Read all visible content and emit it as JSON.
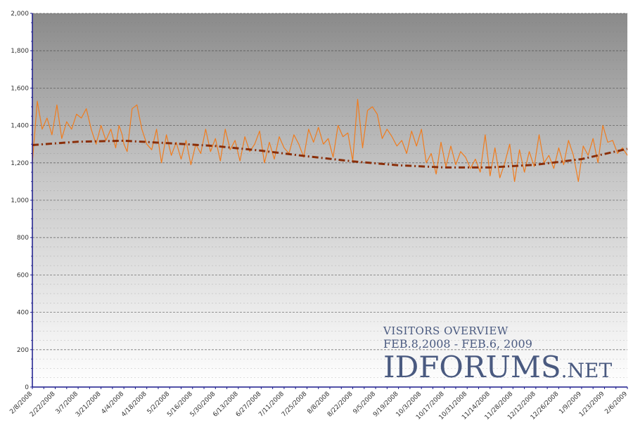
{
  "chart_data": {
    "type": "line",
    "title": "VISITORS OVERVIEW",
    "subtitle": "FEB.8,2008 - FEB.6, 2009",
    "xlabel": "",
    "ylabel": "",
    "ylim": [
      0,
      2000
    ],
    "y_ticks": [
      "0",
      "200",
      "400",
      "600",
      "800",
      "1,000",
      "1,200",
      "1,400",
      "1,600",
      "1,800",
      "2,000"
    ],
    "x_ticks": [
      "2/8/2008",
      "2/22/2008",
      "3/7/2008",
      "3/21/2008",
      "4/4/2008",
      "4/18/2008",
      "5/2/2008",
      "5/16/2008",
      "5/30/2008",
      "6/13/2008",
      "6/27/2008",
      "7/11/2008",
      "7/25/2008",
      "8/8/2008",
      "8/22/2008",
      "9/5/2008",
      "9/19/2008",
      "10/3/2008",
      "10/17/2008",
      "10/31/2008",
      "11/14/2008",
      "11/28/2008",
      "12/12/2008",
      "12/26/2008",
      "1/9/2009",
      "1/23/2009",
      "2/6/2009"
    ],
    "grid": true,
    "series": [
      {
        "style": "solid",
        "color": "#f07c1e",
        "x": [
          "2/8/2008",
          "2/11/2008",
          "2/14/2008",
          "2/17/2008",
          "2/20/2008",
          "2/23/2008",
          "2/26/2008",
          "2/29/2008",
          "3/3/2008",
          "3/6/2008",
          "3/9/2008",
          "3/12/2008",
          "3/15/2008",
          "3/18/2008",
          "3/21/2008",
          "3/24/2008",
          "3/27/2008",
          "3/30/2008",
          "4/1/2008",
          "4/3/2008",
          "4/4/2008",
          "4/6/2008",
          "4/9/2008",
          "4/12/2008",
          "4/15/2008",
          "4/18/2008",
          "4/21/2008",
          "4/24/2008",
          "4/27/2008",
          "4/30/2008",
          "5/3/2008",
          "5/6/2008",
          "5/9/2008",
          "5/12/2008",
          "5/15/2008",
          "5/18/2008",
          "5/21/2008",
          "5/24/2008",
          "5/27/2008",
          "5/30/2008",
          "6/2/2008",
          "6/5/2008",
          "6/8/2008",
          "6/11/2008",
          "6/14/2008",
          "6/17/2008",
          "6/20/2008",
          "6/23/2008",
          "6/26/2008",
          "6/29/2008",
          "7/2/2008",
          "7/5/2008",
          "7/8/2008",
          "7/11/2008",
          "7/14/2008",
          "7/17/2008",
          "7/20/2008",
          "7/23/2008",
          "7/26/2008",
          "7/29/2008",
          "8/1/2008",
          "8/4/2008",
          "8/7/2008",
          "8/10/2008",
          "8/13/2008",
          "8/16/2008",
          "8/19/2008",
          "8/22/2008",
          "8/25/2008",
          "8/28/2008",
          "8/31/2008",
          "9/3/2008",
          "9/6/2008",
          "9/9/2008",
          "9/12/2008",
          "9/15/2008",
          "9/18/2008",
          "9/21/2008",
          "9/24/2008",
          "9/27/2008",
          "9/30/2008",
          "10/3/2008",
          "10/6/2008",
          "10/9/2008",
          "10/12/2008",
          "10/15/2008",
          "10/18/2008",
          "10/21/2008",
          "10/24/2008",
          "10/27/2008",
          "10/30/2008",
          "11/2/2008",
          "11/5/2008",
          "11/8/2008",
          "11/11/2008",
          "11/14/2008",
          "11/17/2008",
          "11/20/2008",
          "11/23/2008",
          "11/26/2008",
          "11/29/2008",
          "12/2/2008",
          "12/5/2008",
          "12/8/2008",
          "12/11/2008",
          "12/14/2008",
          "12/17/2008",
          "12/20/2008",
          "12/23/2008",
          "12/26/2008",
          "12/29/2008",
          "1/1/2009",
          "1/4/2009",
          "1/7/2009",
          "1/10/2009",
          "1/13/2009",
          "1/16/2009",
          "1/19/2009",
          "1/22/2009",
          "1/25/2009",
          "1/28/2009",
          "1/31/2009",
          "2/3/2009",
          "2/6/2009"
        ],
        "values": [
          1200,
          1530,
          1380,
          1440,
          1350,
          1510,
          1330,
          1420,
          1380,
          1460,
          1440,
          1490,
          1380,
          1300,
          1400,
          1320,
          1380,
          1280,
          1400,
          1350,
          1300,
          1260,
          1490,
          1510,
          1380,
          1300,
          1270,
          1380,
          1200,
          1350,
          1240,
          1310,
          1220,
          1320,
          1190,
          1300,
          1250,
          1380,
          1260,
          1330,
          1210,
          1380,
          1270,
          1320,
          1210,
          1340,
          1260,
          1300,
          1370,
          1200,
          1310,
          1220,
          1340,
          1280,
          1250,
          1350,
          1300,
          1230,
          1380,
          1310,
          1390,
          1300,
          1330,
          1230,
          1400,
          1340,
          1360,
          1210,
          1540,
          1280,
          1480,
          1500,
          1460,
          1330,
          1380,
          1340,
          1290,
          1320,
          1250,
          1370,
          1290,
          1380,
          1200,
          1250,
          1140,
          1310,
          1180,
          1290,
          1190,
          1260,
          1230,
          1170,
          1220,
          1150,
          1350,
          1130,
          1280,
          1120,
          1200,
          1300,
          1100,
          1270,
          1150,
          1260,
          1180,
          1350,
          1200,
          1240,
          1170,
          1280,
          1190,
          1320,
          1240,
          1100,
          1290,
          1240,
          1330,
          1200,
          1400,
          1310,
          1320,
          1250,
          1280,
          1240
        ]
      },
      {
        "style": "dash-dot",
        "color": "#8a2e08",
        "x": [
          "2/8/2008",
          "3/7/2008",
          "4/4/2008",
          "5/2/2008",
          "5/30/2008",
          "6/27/2008",
          "7/25/2008",
          "8/22/2008",
          "9/19/2008",
          "10/17/2008",
          "11/14/2008",
          "12/12/2008",
          "1/9/2009",
          "2/6/2009"
        ],
        "values": [
          1295,
          1313,
          1318,
          1305,
          1290,
          1265,
          1235,
          1208,
          1187,
          1175,
          1175,
          1190,
          1220,
          1275
        ]
      }
    ]
  },
  "watermark": {
    "line1": "VISITORS OVERVIEW",
    "line2": "FEB.8,2008 - FEB.6, 2009",
    "brand_main": "IDFORUMS",
    "brand_suffix": ".NET"
  },
  "colors": {
    "bg_top": "#8a8a8a",
    "bg_bottom": "#ffffff",
    "axis": "#1a1a8c",
    "grid": "#555555",
    "brand": "#4a5a80"
  }
}
